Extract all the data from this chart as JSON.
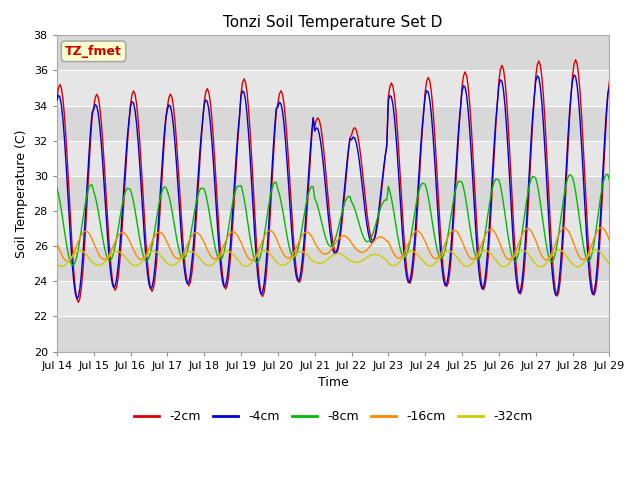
{
  "title": "Tonzi Soil Temperature Set D",
  "xlabel": "Time",
  "ylabel": "Soil Temperature (C)",
  "ylim": [
    20,
    38
  ],
  "xlim": [
    0,
    360
  ],
  "annotation_text": "TZ_fmet",
  "annotation_color": "#cc0000",
  "annotation_bg": "#ffffcc",
  "annotation_border": "#aaaaaa",
  "series_colors": [
    "#dd0000",
    "#0000dd",
    "#00bb00",
    "#ff8800",
    "#cccc00"
  ],
  "series_labels": [
    "-2cm",
    "-4cm",
    "-8cm",
    "-16cm",
    "-32cm"
  ],
  "n_days": 16,
  "points_per_day": 24,
  "amplitudes": [
    6.2,
    5.8,
    2.3,
    0.85,
    0.45
  ],
  "base_temps": [
    29.0,
    28.8,
    27.2,
    26.0,
    25.3
  ],
  "phase_offsets": [
    0.0,
    0.03,
    0.15,
    0.3,
    0.45
  ],
  "peak_hour": 14,
  "scale_by_day": [
    1.0,
    0.9,
    0.92,
    0.88,
    0.92,
    1.0,
    0.88,
    0.62,
    0.52,
    0.92,
    0.96,
    1.0,
    1.05,
    1.08,
    1.08,
    1.0
  ],
  "trend_by_series": [
    0.065,
    0.05,
    0.03,
    0.01,
    0.0
  ],
  "tick_labels": [
    "Jul 14",
    "Jul 15",
    "Jul 16",
    "Jul 17",
    "Jul 18",
    "Jul 19",
    "Jul 20",
    "Jul 21",
    "Jul 22",
    "Jul 23",
    "Jul 24",
    "Jul 25",
    "Jul 26",
    "Jul 27",
    "Jul 28",
    "Jul 29"
  ],
  "tick_positions": [
    0,
    24,
    48,
    72,
    96,
    120,
    144,
    168,
    192,
    216,
    240,
    264,
    288,
    312,
    336,
    360
  ],
  "yticks": [
    20,
    22,
    24,
    26,
    28,
    30,
    32,
    34,
    36,
    38
  ],
  "band_colors": [
    "#d8d8d8",
    "#e6e6e6"
  ],
  "figsize": [
    6.4,
    4.8
  ],
  "dpi": 100
}
